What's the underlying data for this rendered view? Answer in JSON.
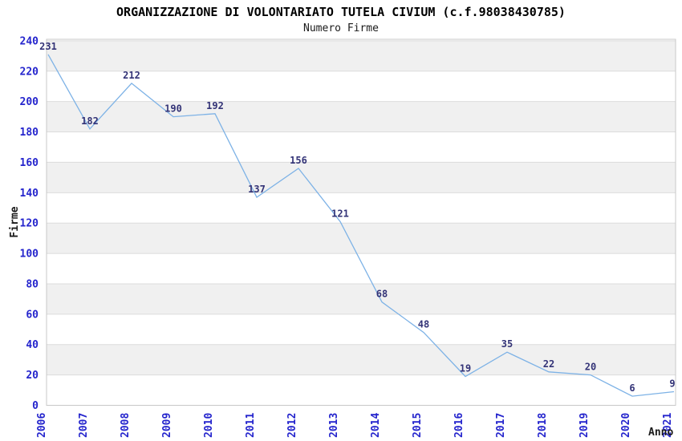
{
  "header": {
    "title": "ORGANIZZAZIONE DI VOLONTARIATO TUTELA CIVIUM (c.f.98038430785)",
    "subtitle": "Numero Firme"
  },
  "chart_data": {
    "type": "line",
    "title": "ORGANIZZAZIONE DI VOLONTARIATO TUTELA CIVIUM (c.f.98038430785)",
    "subtitle": "Numero Firme",
    "xlabel": "Anno",
    "ylabel": "Firme",
    "categories": [
      "2006",
      "2007",
      "2008",
      "2009",
      "2010",
      "2011",
      "2012",
      "2013",
      "2014",
      "2015",
      "2016",
      "2017",
      "2018",
      "2019",
      "2020",
      "2021"
    ],
    "series": [
      {
        "name": "Numero Firme",
        "values": [
          231,
          182,
          212,
          190,
          192,
          137,
          156,
          121,
          68,
          48,
          19,
          35,
          22,
          20,
          6,
          9
        ]
      }
    ],
    "data_labels_visible": true,
    "ylim": [
      0,
      241
    ],
    "yticks": [
      0,
      20,
      40,
      60,
      80,
      100,
      120,
      140,
      160,
      180,
      200,
      220,
      240
    ],
    "x_tick_rotation_degrees": 90,
    "grid": "horizontal",
    "legend_position": "none",
    "background_bands": "alternating horizontal 20-unit stripes (gray on 20-40, 60-80, 100-120, 140-160, 180-200, 220-240)",
    "colors": {
      "line": "#7db2e6",
      "axis_tick_label": "#2525cd",
      "data_label": "#333377",
      "band_gray": "#f0f0f0",
      "plot_background": "#ffffff",
      "plot_border": "#c8c8c8",
      "gridline": "#dcdcdc",
      "title": "#000000",
      "axis_title": "#1a1a1a"
    }
  }
}
